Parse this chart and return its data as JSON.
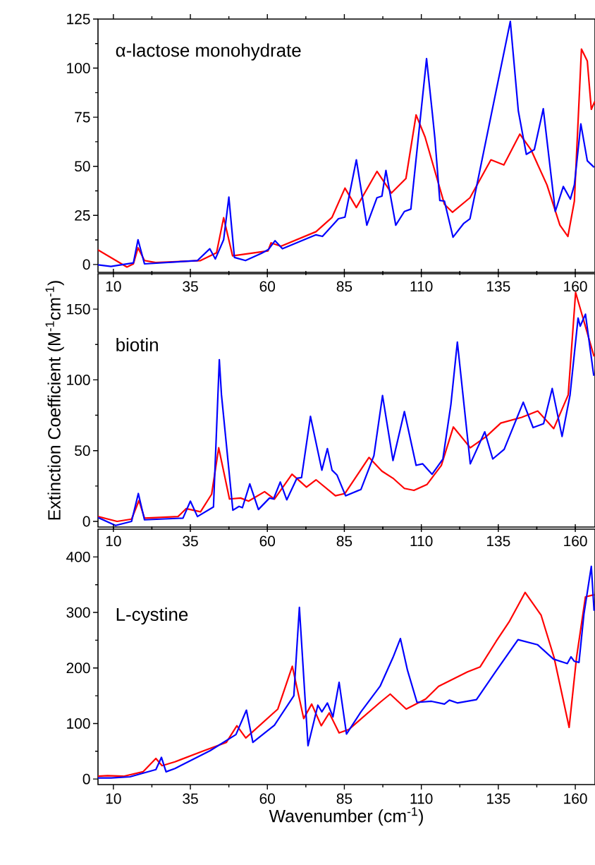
{
  "chart_data": [
    {
      "type": "line",
      "xlim": [
        5,
        166.4
      ],
      "ylim": [
        -4,
        125
      ],
      "xticks": [
        10,
        35,
        60,
        85,
        110,
        135,
        160
      ],
      "yticks": [
        0,
        25,
        50,
        75,
        100,
        125
      ],
      "annotations": [
        "α-lactose monohydrate"
      ],
      "series": [
        {
          "color": "#ff0000",
          "x": [
            5,
            14.4,
            16.5,
            18,
            20.1,
            23.7,
            38.3,
            43.5,
            45.8,
            48.7,
            60.2,
            61.2,
            64.4,
            75.8,
            81,
            85.2,
            88.9,
            95.6,
            100.3,
            105,
            108.3,
            111.2,
            117.5,
            120.1,
            125.8,
            132.6,
            136.8,
            142,
            145.6,
            150.8,
            155,
            157.6,
            159.7,
            162,
            163.9,
            165.2,
            166.3
          ],
          "values": [
            7.4,
            -1.3,
            0.3,
            8.5,
            2,
            1,
            2,
            6,
            23.8,
            4.4,
            6.9,
            11,
            9.3,
            16.7,
            24,
            38.9,
            29,
            47.4,
            36.4,
            43.8,
            76.2,
            65,
            30.7,
            26.6,
            34,
            53.3,
            50.7,
            66.4,
            58.5,
            40.5,
            20,
            14.3,
            32.3,
            109.7,
            103.6,
            79,
            83
          ]
        },
        {
          "color": "#0000ff",
          "x": [
            5,
            9.2,
            16.5,
            18,
            20.1,
            37.3,
            41.3,
            43.1,
            45.8,
            47.5,
            49.3,
            52.9,
            58.1,
            60.4,
            62.5,
            64.9,
            75.8,
            77.9,
            83.1,
            85.2,
            88.9,
            92.3,
            95.6,
            97.2,
            98.5,
            101.7,
            104.5,
            106.6,
            111.7,
            113.6,
            114.4,
            116,
            117.5,
            120.3,
            123.7,
            125.8,
            138.9,
            141.5,
            144.1,
            146.7,
            149.6,
            153.5,
            156.1,
            158.4,
            159.7,
            161.8,
            163.9,
            166.1
          ],
          "values": [
            -0.2,
            -1,
            0.8,
            12.6,
            0.3,
            2,
            8,
            2.8,
            12.6,
            34.3,
            3.6,
            2,
            5.7,
            7.7,
            12.1,
            8,
            15.1,
            14.3,
            23.3,
            24.1,
            53.3,
            20,
            34,
            34.8,
            47.9,
            20,
            27,
            28.2,
            104.8,
            76.6,
            64.3,
            32.6,
            32.3,
            13.9,
            20.8,
            23.3,
            123.8,
            78.2,
            56.1,
            58.5,
            79.3,
            27,
            39.7,
            33.3,
            40.5,
            71.6,
            52.8,
            49.5
          ]
        }
      ]
    },
    {
      "type": "line",
      "xlim": [
        5,
        166.4
      ],
      "ylim": [
        -4,
        175
      ],
      "xticks": [
        10,
        35,
        60,
        85,
        110,
        135,
        160
      ],
      "yticks": [
        0,
        50,
        100,
        150
      ],
      "ylabel": "Extinction Coefficient (M$^{-1}$cm$^{-1}$)",
      "annotations": [
        "biotin"
      ],
      "series": [
        {
          "color": "#ff0000",
          "x": [
            5,
            11.2,
            15.9,
            18.3,
            20.1,
            31,
            33.6,
            38.3,
            41.9,
            44.2,
            47.7,
            51.3,
            53.9,
            59.1,
            62.3,
            68,
            72.7,
            75.8,
            82.1,
            85.2,
            93,
            97.2,
            100.8,
            104.5,
            107.6,
            111.8,
            116.5,
            120.4,
            125.9,
            131.1,
            135.8,
            142.6,
            147.8,
            153,
            157.7,
            160.1,
            160.5,
            164.4,
            166.1
          ],
          "values": [
            3.4,
            0,
            1.6,
            14.7,
            2.3,
            3.4,
            9,
            6.8,
            19.2,
            52,
            15.8,
            16.5,
            14.3,
            21,
            15.8,
            33.3,
            24.2,
            29.4,
            18.1,
            19.7,
            45.2,
            35.5,
            30.5,
            23.3,
            21.9,
            26,
            39.6,
            66.7,
            52,
            60,
            69.5,
            73.5,
            78,
            65.6,
            89.4,
            161.8,
            null,
            null,
            116.5
          ]
        },
        {
          "color": "#0000ff",
          "x": [
            5,
            10.7,
            15.9,
            18.1,
            20.1,
            32.6,
            35,
            37.3,
            42.5,
            44.4,
            45.1,
            48.8,
            50.8,
            51.9,
            54.3,
            57.1,
            60.7,
            62,
            64.2,
            66.3,
            69.6,
            71.1,
            74,
            77.7,
            79.5,
            81,
            82.6,
            85.4,
            90.4,
            94.6,
            97.4,
            100.8,
            104.5,
            108.3,
            110.4,
            113.5,
            117,
            119.6,
            121.7,
            125.9,
            130.6,
            133.2,
            136.9,
            143.1,
            146.3,
            149.7,
            152.5,
            155.7,
            158.3,
            160.9,
            161.6,
            163.3,
            166
          ],
          "values": [
            2.7,
            -2.9,
            0,
            19.7,
            1.1,
            2.3,
            14.3,
            3.4,
            10.2,
            114.3,
            89.4,
            7.9,
            10.6,
            9.7,
            26.5,
            8.4,
            16.5,
            15.8,
            27.8,
            15.2,
            30.5,
            31,
            74.2,
            36.2,
            51.4,
            36.2,
            32.8,
            18.1,
            22.6,
            46.4,
            88.9,
            43,
            77.6,
            39.6,
            40.7,
            33.3,
            44.1,
            82.6,
            126.7,
            40.7,
            63.3,
            44.1,
            50.9,
            84.2,
            66.3,
            69,
            93.9,
            60,
            89.4,
            143.7,
            138,
            146.4,
            102.9
          ]
        }
      ]
    },
    {
      "type": "line",
      "xlim": [
        5,
        166.4
      ],
      "ylim": [
        -10,
        450
      ],
      "xticks": [
        10,
        35,
        60,
        85,
        110,
        135,
        160
      ],
      "yticks": [
        0,
        100,
        200,
        300,
        400
      ],
      "xlabel": "Wavenumber (cm$^{-1}$)",
      "annotations": [
        "L-cystine"
      ],
      "series": [
        {
          "color": "#ff0000",
          "x": [
            5,
            8.1,
            13.3,
            19.6,
            23.8,
            25.8,
            30,
            39.4,
            46.7,
            50.1,
            53,
            63.4,
            68.1,
            71.8,
            74.4,
            77.5,
            80.1,
            83.3,
            86.4,
            96.8,
            99.9,
            105.1,
            111.4,
            115.6,
            125,
            129.1,
            134.3,
            138.5,
            143.7,
            148.9,
            153.1,
            158,
            160.4,
            163.3,
            166.1
          ],
          "values": [
            5,
            6,
            5,
            13,
            37,
            24,
            31,
            51,
            66,
            96,
            74,
            126,
            203,
            109,
            135,
            96,
            119,
            83,
            89,
            139,
            153,
            126,
            144,
            167,
            193,
            202,
            248,
            283,
            336,
            295,
            219,
            93,
            219,
            328,
            332
          ]
        },
        {
          "color": "#0000ff",
          "x": [
            5,
            9.2,
            15.4,
            23.8,
            25.6,
            27.1,
            30,
            41.4,
            49.8,
            53.2,
            55.3,
            62.3,
            68.6,
            70.4,
            73.2,
            76.4,
            77.7,
            79.5,
            81.3,
            83.3,
            85.7,
            90.4,
            96.6,
            100.8,
            103.2,
            105.5,
            108.6,
            113.3,
            117.5,
            119.1,
            121.7,
            127.9,
            134.1,
            141.4,
            147.7,
            152.9,
            157.4,
            158.6,
            159.7,
            161.2,
            162.8,
            165.2,
            166.1
          ],
          "values": [
            2,
            2,
            4,
            17,
            39,
            13,
            19,
            51,
            80,
            124,
            66,
            97,
            150,
            309,
            60,
            133,
            121,
            137,
            112,
            174,
            81,
            121,
            167,
            219,
            253,
            196,
            138,
            140,
            135,
            142,
            137,
            143,
            193,
            251,
            242,
            216,
            208,
            220,
            212,
            210,
            297,
            383,
            303
          ]
        }
      ]
    }
  ]
}
